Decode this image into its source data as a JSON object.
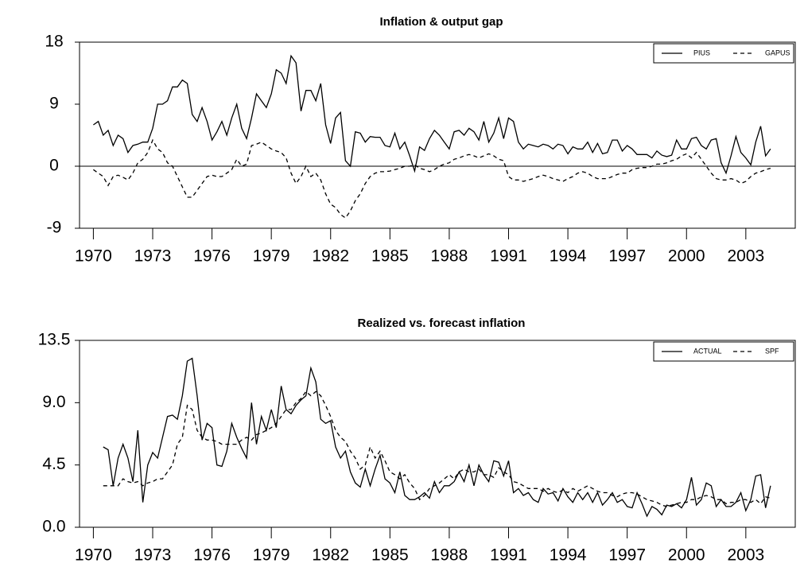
{
  "chart_data": [
    {
      "type": "line",
      "title": "Inflation & output gap",
      "x": [
        1970,
        1970.25,
        1970.5,
        1970.75,
        1971,
        1971.25,
        1971.5,
        1971.75,
        1972,
        1972.25,
        1972.5,
        1972.75,
        1973,
        1973.25,
        1973.5,
        1973.75,
        1974,
        1974.25,
        1974.5,
        1974.75,
        1975,
        1975.25,
        1975.5,
        1975.75,
        1976,
        1976.25,
        1976.5,
        1976.75,
        1977,
        1977.25,
        1977.5,
        1977.75,
        1978,
        1978.25,
        1978.5,
        1978.75,
        1979,
        1979.25,
        1979.5,
        1979.75,
        1980,
        1980.25,
        1980.5,
        1980.75,
        1981,
        1981.25,
        1981.5,
        1981.75,
        1982,
        1982.25,
        1982.5,
        1982.75,
        1983,
        1983.25,
        1983.5,
        1983.75,
        1984,
        1984.25,
        1984.5,
        1984.75,
        1985,
        1985.25,
        1985.5,
        1985.75,
        1986,
        1986.25,
        1986.5,
        1986.75,
        1987,
        1987.25,
        1987.5,
        1987.75,
        1988,
        1988.25,
        1988.5,
        1988.75,
        1989,
        1989.25,
        1989.5,
        1989.75,
        1990,
        1990.25,
        1990.5,
        1990.75,
        1991,
        1991.25,
        1991.5,
        1991.75,
        1992,
        1992.25,
        1992.5,
        1992.75,
        1993,
        1993.25,
        1993.5,
        1993.75,
        1994,
        1994.25,
        1994.5,
        1994.75,
        1995,
        1995.25,
        1995.5,
        1995.75,
        1996,
        1996.25,
        1996.5,
        1996.75,
        1997,
        1997.25,
        1997.5,
        1997.75,
        1998,
        1998.25,
        1998.5,
        1998.75,
        1999,
        1999.25,
        1999.5,
        1999.75,
        2000,
        2000.25,
        2000.5,
        2000.75,
        2001,
        2001.25,
        2001.5,
        2001.75,
        2002,
        2002.25,
        2002.5,
        2002.75,
        2003,
        2003.25,
        2003.5,
        2003.75,
        2004,
        2004.25
      ],
      "series": [
        {
          "name": "PIUS",
          "color": "#000000",
          "dash": false,
          "values": [
            6,
            6.5,
            4.5,
            5.2,
            3,
            4.5,
            4,
            2,
            3,
            3.2,
            3.5,
            3.5,
            5.5,
            9,
            9,
            9.5,
            11.5,
            11.5,
            12.5,
            12,
            7.5,
            6.5,
            8.5,
            6.5,
            3.8,
            5,
            6.5,
            4.5,
            7,
            9,
            5.5,
            4,
            7,
            10.5,
            9.5,
            8.5,
            10.5,
            14,
            13.5,
            12,
            16,
            15,
            8,
            11,
            11,
            9.5,
            12,
            6,
            3.3,
            7,
            7.8,
            0.8,
            0,
            5,
            4.8,
            3.5,
            4.3,
            4.2,
            4.2,
            3,
            2.8,
            4.8,
            2.5,
            3.5,
            1.5,
            -0.7,
            2.8,
            2.3,
            4,
            5.2,
            4.5,
            3.5,
            2.5,
            5,
            5.2,
            4.5,
            5.5,
            5,
            3.8,
            6.5,
            3.5,
            4.8,
            7,
            4,
            7,
            6.5,
            3.5,
            2.5,
            3.2,
            3,
            2.8,
            3.2,
            3,
            2.5,
            3.2,
            3,
            1.8,
            2.8,
            2.5,
            2.5,
            3.5,
            2,
            3.3,
            1.8,
            2,
            3.8,
            3.8,
            2.2,
            3,
            2.5,
            1.7,
            1.7,
            1.7,
            1.2,
            2.2,
            1.6,
            1.4,
            1.6,
            3.8,
            2.5,
            2.5,
            4,
            4.2,
            3,
            2.5,
            3.8,
            4,
            0.5,
            -1,
            1.5,
            4.3,
            2,
            1.2,
            0.2,
            3.5,
            5.8,
            1.5,
            2.5
          ]
        },
        {
          "name": "GAPUS",
          "color": "#000000",
          "dash": true,
          "values": [
            -0.5,
            -1,
            -1.5,
            -2.8,
            -1.5,
            -1.3,
            -1.6,
            -2,
            -1,
            0.5,
            1,
            2,
            3.8,
            2.5,
            2,
            0.5,
            0,
            -1.5,
            -3,
            -4.5,
            -4.5,
            -3.5,
            -2.5,
            -1.5,
            -1.3,
            -1.5,
            -1.5,
            -1,
            -0.5,
            1,
            0,
            0.3,
            3,
            3.2,
            3.5,
            3,
            2.5,
            2.2,
            2,
            1.2,
            -1,
            -2.5,
            -1.5,
            0,
            -1.5,
            -1,
            -2,
            -4,
            -5.5,
            -6,
            -7,
            -7.5,
            -6.5,
            -5,
            -4,
            -2.5,
            -1.5,
            -1,
            -0.8,
            -0.8,
            -0.7,
            -0.5,
            -0.3,
            0,
            0,
            0.2,
            -0.3,
            -0.5,
            -0.8,
            -0.5,
            0,
            0.3,
            0.5,
            1,
            1.2,
            1.5,
            1.7,
            1.5,
            1.2,
            1.5,
            1.8,
            1.5,
            1,
            0.8,
            -1.5,
            -2,
            -2,
            -2.2,
            -2,
            -1.8,
            -1.5,
            -1.3,
            -1.5,
            -1.8,
            -2,
            -2.2,
            -1.8,
            -1.5,
            -1,
            -0.8,
            -1,
            -1.5,
            -1.8,
            -1.8,
            -1.8,
            -1.5,
            -1.2,
            -1,
            -1,
            -0.5,
            -0.3,
            -0.2,
            -0.2,
            0,
            0.3,
            0.3,
            0.5,
            0.8,
            1,
            1.5,
            1.8,
            1.2,
            2,
            1,
            0,
            -1,
            -1.8,
            -2,
            -2,
            -1.8,
            -2,
            -2.5,
            -2.2,
            -1.5,
            -1,
            -0.8,
            -0.5,
            -0.3
          ]
        }
      ],
      "xlim": [
        1969.3,
        2005.5
      ],
      "xticks": [
        1970,
        1973,
        1976,
        1979,
        1982,
        1985,
        1988,
        1991,
        1994,
        1997,
        2000,
        2003
      ],
      "ylim": [
        -9,
        18
      ],
      "yticks": [
        -9,
        0,
        9,
        18
      ],
      "legend": "upper right"
    },
    {
      "type": "line",
      "title": "Realized vs. forecast inflation",
      "x": [
        1970.5,
        1970.75,
        1971,
        1971.25,
        1971.5,
        1971.75,
        1972,
        1972.25,
        1972.5,
        1972.75,
        1973,
        1973.25,
        1973.5,
        1973.75,
        1974,
        1974.25,
        1974.5,
        1974.75,
        1975,
        1975.25,
        1975.5,
        1975.75,
        1976,
        1976.25,
        1976.5,
        1976.75,
        1977,
        1977.25,
        1977.5,
        1977.75,
        1978,
        1978.25,
        1978.5,
        1978.75,
        1979,
        1979.25,
        1979.5,
        1979.75,
        1980,
        1980.25,
        1980.5,
        1980.75,
        1981,
        1981.25,
        1981.5,
        1981.75,
        1982,
        1982.25,
        1982.5,
        1982.75,
        1983,
        1983.25,
        1983.5,
        1983.75,
        1984,
        1984.25,
        1984.5,
        1984.75,
        1985,
        1985.25,
        1985.5,
        1985.75,
        1986,
        1986.25,
        1986.5,
        1986.75,
        1987,
        1987.25,
        1987.5,
        1987.75,
        1988,
        1988.25,
        1988.5,
        1988.75,
        1989,
        1989.25,
        1989.5,
        1989.75,
        1990,
        1990.25,
        1990.5,
        1990.75,
        1991,
        1991.25,
        1991.5,
        1991.75,
        1992,
        1992.25,
        1992.5,
        1992.75,
        1993,
        1993.25,
        1993.5,
        1993.75,
        1994,
        1994.25,
        1994.5,
        1994.75,
        1995,
        1995.25,
        1995.5,
        1995.75,
        1996,
        1996.25,
        1996.5,
        1996.75,
        1997,
        1997.25,
        1997.5,
        1997.75,
        1998,
        1998.25,
        1998.5,
        1998.75,
        1999,
        1999.25,
        1999.5,
        1999.75,
        2000,
        2000.25,
        2000.5,
        2000.75,
        2001,
        2001.25,
        2001.5,
        2001.75,
        2002,
        2002.25,
        2002.5,
        2002.75,
        2003,
        2003.25,
        2003.5,
        2003.75,
        2004,
        2004.25
      ],
      "series": [
        {
          "name": "ACTUAL",
          "color": "#000000",
          "dash": false,
          "values": [
            5.8,
            5.6,
            3,
            5,
            6,
            5,
            3.3,
            7,
            1.8,
            4.5,
            5.4,
            5,
            6.5,
            8,
            8.1,
            7.8,
            9.5,
            12,
            12.2,
            9.5,
            6.3,
            7.5,
            7.2,
            4.5,
            4.4,
            5.5,
            7.5,
            6.5,
            5.7,
            5,
            9,
            6,
            8,
            7,
            8.5,
            7.2,
            10.2,
            8.5,
            8.2,
            8.8,
            9.2,
            9.5,
            11.5,
            10.5,
            7.8,
            7.5,
            7.7,
            5.8,
            5,
            5.5,
            4,
            3.2,
            2.9,
            4.2,
            3,
            4.2,
            5.2,
            3.5,
            3.2,
            2.5,
            4,
            2.3,
            2,
            2,
            2.2,
            2.5,
            2.1,
            3.3,
            2.5,
            3,
            3,
            3.3,
            4,
            3.3,
            4.5,
            3,
            4.5,
            3.8,
            3.3,
            4.8,
            4.7,
            3.7,
            4.8,
            2.5,
            2.8,
            2.3,
            2.5,
            2,
            1.8,
            2.8,
            2.4,
            2.5,
            1.9,
            2.8,
            2.2,
            1.8,
            2.5,
            2,
            2.5,
            1.8,
            2.5,
            1.6,
            2,
            2.5,
            1.8,
            2,
            1.5,
            1.4,
            2.5,
            1.7,
            0.8,
            1.5,
            1.3,
            0.9,
            1.6,
            1.5,
            1.7,
            1.4,
            2,
            3.6,
            1.6,
            2,
            3.2,
            3,
            1.5,
            2,
            1.5,
            1.5,
            1.8,
            2.5,
            1.2,
            2,
            3.7,
            3.8,
            1.4,
            3
          ]
        },
        {
          "name": "SPF",
          "color": "#000000",
          "dash": true,
          "values": [
            3,
            3,
            3,
            3,
            3.5,
            3.3,
            3.2,
            3.3,
            3,
            3.2,
            3.3,
            3.5,
            3.5,
            4,
            4.5,
            6,
            6.5,
            8.8,
            8.5,
            7,
            6.5,
            6.3,
            6.3,
            6.2,
            6,
            6,
            6,
            6,
            6.3,
            6.5,
            6.3,
            6.7,
            6.8,
            7,
            7.2,
            7.5,
            8,
            8.5,
            8.5,
            9,
            9.3,
            9.8,
            9.5,
            9.8,
            9.5,
            8.8,
            8,
            7,
            6.5,
            6.2,
            5.5,
            5,
            4.2,
            4.5,
            5.8,
            5,
            5.5,
            4.8,
            4,
            3.8,
            3.5,
            3.8,
            3.2,
            2.8,
            2,
            2.3,
            2.8,
            3,
            3.2,
            3.5,
            3.8,
            3.5,
            4,
            4.2,
            4,
            4,
            4.2,
            3.8,
            3.8,
            3.6,
            4.3,
            4,
            3.8,
            3.3,
            3.2,
            3,
            2.8,
            2.8,
            2.8,
            2.6,
            2.8,
            2.6,
            2.5,
            2.7,
            2.5,
            2.8,
            2.6,
            2.8,
            3,
            2.8,
            2.6,
            2.5,
            2.5,
            2.3,
            2.2,
            2.4,
            2.5,
            2.5,
            2.4,
            2.2,
            2,
            1.9,
            1.8,
            1.6,
            1.5,
            1.6,
            1.7,
            1.8,
            1.8,
            2,
            2,
            2.2,
            2.3,
            2.2,
            2,
            2,
            1.7,
            1.8,
            1.8,
            2,
            2,
            1.8,
            2,
            1.7,
            2.2,
            2.1
          ]
        }
      ],
      "xlim": [
        1969.3,
        2005.5
      ],
      "xticks": [
        1970,
        1973,
        1976,
        1979,
        1982,
        1985,
        1988,
        1991,
        1994,
        1997,
        2000,
        2003
      ],
      "ylim": [
        0,
        13.5
      ],
      "yticks": [
        {
          "value": 0,
          "label": "0.0"
        },
        4.5,
        {
          "value": 9,
          "label": "9.0"
        },
        13.5
      ],
      "legend": "upper right"
    }
  ]
}
